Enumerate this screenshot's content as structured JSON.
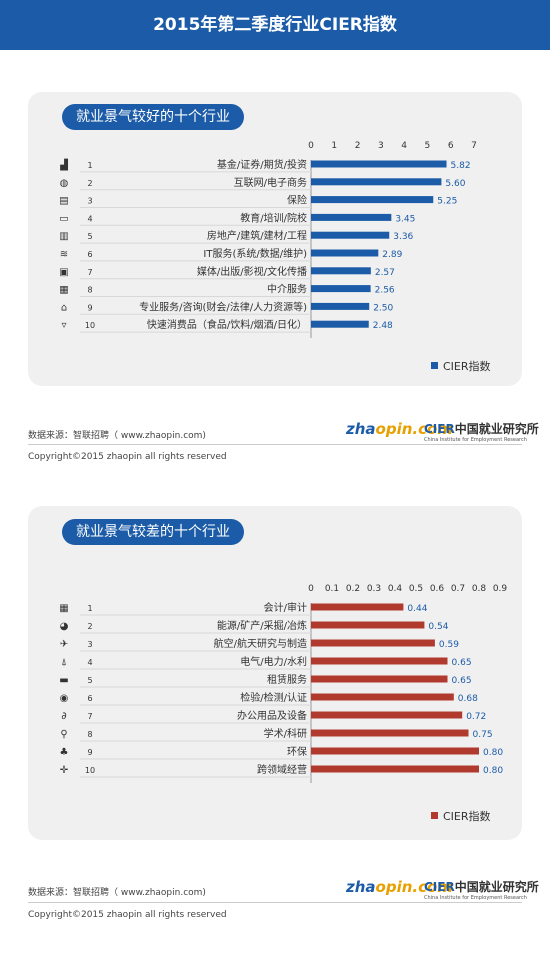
{
  "header": {
    "title": "2015年第二季度行业CIER指数"
  },
  "source_label": "数据来源：智联招聘（ www.zhaopin.com)",
  "copyright": "Copyright©2015 zhaopin all rights reserved",
  "logos": {
    "zhaopin_cn": "智联招聘",
    "zhaopin_en_a": "zha",
    "zhaopin_en_b": "opin.com",
    "cier": "CIER",
    "cier_cn": "中国就业研究所",
    "cier_en": "China Institute for Employment Research"
  },
  "colors": {
    "header": "#1b5ba7",
    "best_bar": "#1b5ba7",
    "worst_bar": "#b03a2e",
    "panel": "#f0f0f0"
  },
  "chart_data": [
    {
      "type": "bar",
      "title": "就业景气较好的十个行业",
      "ranks": [
        "1",
        "2",
        "3",
        "4",
        "5",
        "6",
        "7",
        "8",
        "9",
        "10"
      ],
      "categories": [
        "基金/证券/期货/投资",
        "互联网/电子商务",
        "保险",
        "教育/培训/院校",
        "房地产/建筑/建材/工程",
        "IT服务(系统/数据/维护)",
        "媒体/出版/影视/文化传播",
        "中介服务",
        "专业服务/咨询(财会/法律/人力资源等)",
        "快速消费品（食品/饮料/烟酒/日化）"
      ],
      "labels": [
        "5.82",
        "5.60",
        "5.25",
        "3.45",
        "3.36",
        "2.89",
        "2.57",
        "2.56",
        "2.50",
        "2.48"
      ],
      "values": [
        5.82,
        5.6,
        5.25,
        3.45,
        3.36,
        2.89,
        2.57,
        2.56,
        2.5,
        2.48
      ],
      "ticks": [
        "0",
        "1",
        "2",
        "3",
        "4",
        "5",
        "6",
        "7"
      ],
      "xlim": [
        0,
        7
      ],
      "icons": [
        "chart-icon",
        "globe-icon",
        "inbox-icon",
        "laptop-icon",
        "buildings-icon",
        "wifi-icon",
        "film-icon",
        "printer-icon",
        "bank-icon",
        "cup-icon"
      ],
      "legend": "CIER指数",
      "legend_position": "bottom-right",
      "color": "#1b5ba7"
    },
    {
      "type": "bar",
      "title": "就业景气较差的十个行业",
      "ranks": [
        "1",
        "2",
        "3",
        "4",
        "5",
        "6",
        "7",
        "8",
        "9",
        "10"
      ],
      "categories": [
        "会计/审计",
        "能源/矿产/采掘/冶炼",
        "航空/航天研究与制造",
        "电气/电力/水利",
        "租赁服务",
        "检验/检测/认证",
        "办公用品及设备",
        "学术/科研",
        "环保",
        "跨领域经营"
      ],
      "labels": [
        "0.44",
        "0.54",
        "0.59",
        "0.65",
        "0.65",
        "0.68",
        "0.72",
        "0.75",
        "0.80",
        "0.80"
      ],
      "values": [
        0.44,
        0.54,
        0.59,
        0.65,
        0.65,
        0.68,
        0.72,
        0.75,
        0.8,
        0.8
      ],
      "ticks": [
        "0",
        "0.1",
        "0.2",
        "0.3",
        "0.4",
        "0.5",
        "0.6",
        "0.7",
        "0.8",
        "0.9"
      ],
      "xlim": [
        0,
        0.9
      ],
      "icons": [
        "calculator-icon",
        "nuclear-icon",
        "airplane-icon",
        "transmission-tower-icon",
        "rent-sign-icon",
        "inspection-icon",
        "paperclip-icon",
        "microscope-icon",
        "plant-icon",
        "crosshair-icon"
      ],
      "legend": "CIER指数",
      "legend_position": "bottom-right",
      "color": "#b03a2e"
    }
  ]
}
